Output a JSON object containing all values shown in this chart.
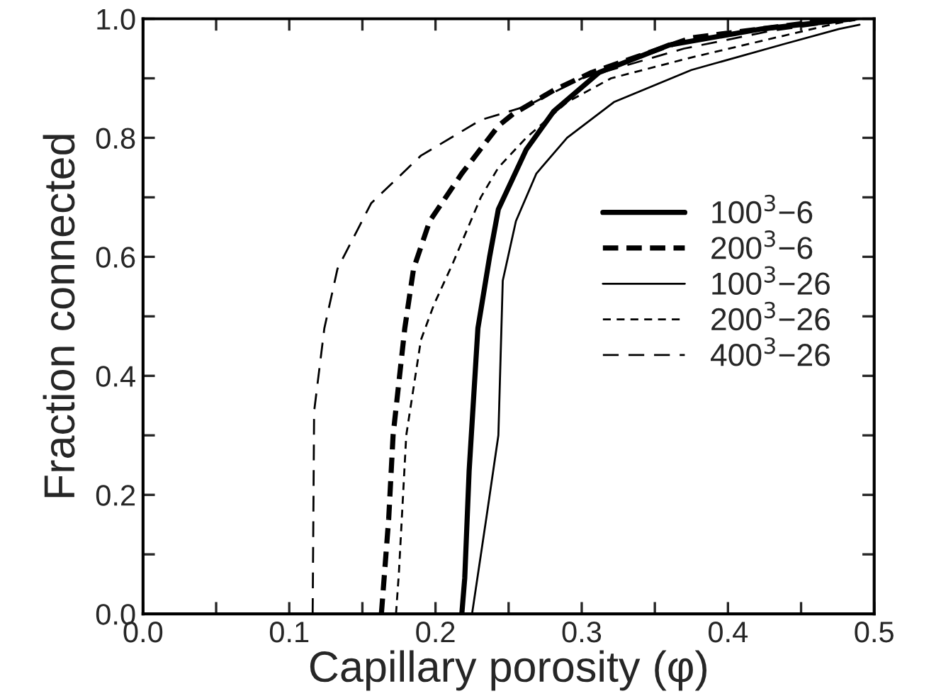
{
  "chart_data": {
    "type": "line",
    "xlabel": "Capillary porosity (φ)",
    "ylabel": "Fraction connected",
    "xlim": [
      0.0,
      0.5
    ],
    "ylim": [
      0.0,
      1.0
    ],
    "xticks": [
      {
        "value": 0,
        "label": "0.0"
      },
      {
        "value": 0.05,
        "label": null
      },
      0.1,
      {
        "value": 0.15,
        "label": null
      },
      0.2,
      {
        "value": 0.25,
        "label": null
      },
      0.3,
      {
        "value": 0.35,
        "label": null
      },
      0.4,
      {
        "value": 0.45,
        "label": null
      },
      0.5
    ],
    "yticks": [
      {
        "value": 0,
        "label": "0.0"
      },
      {
        "value": 0.1,
        "label": null
      },
      0.2,
      {
        "value": 0.3,
        "label": null
      },
      0.4,
      {
        "value": 0.5,
        "label": null
      },
      0.6,
      {
        "value": 0.7,
        "label": null
      },
      0.8,
      {
        "value": 0.9,
        "label": null
      },
      {
        "value": 1,
        "label": "1.0"
      }
    ],
    "grid": false,
    "legend": "right",
    "marker": "none",
    "series": [
      {
        "name": "100$^{3}$−6",
        "color": "#000000",
        "line_style": "solid",
        "x": [
          0.218,
          0.22,
          0.223,
          0.229,
          0.237,
          0.243,
          0.262,
          0.281,
          0.312,
          0.36,
          0.423,
          0.486
        ],
        "values": [
          0.0,
          0.06,
          0.24,
          0.48,
          0.6,
          0.68,
          0.78,
          0.845,
          0.91,
          0.956,
          0.983,
          1.0
        ]
      },
      {
        "name": "200$^{3}$−6",
        "color": "#000000",
        "line_style": "dashed",
        "x": [
          0.163,
          0.168,
          0.171,
          0.179,
          0.185,
          0.196,
          0.218,
          0.243,
          0.253,
          0.281,
          0.307,
          0.375,
          0.47
        ],
        "values": [
          0.0,
          0.16,
          0.3,
          0.48,
          0.58,
          0.66,
          0.74,
          0.82,
          0.84,
          0.88,
          0.91,
          0.968,
          0.998
        ]
      },
      {
        "name": "100$^{3}$−26",
        "color": "#000000",
        "line_style": "solid",
        "x": [
          0.225,
          0.235,
          0.243,
          0.246,
          0.255,
          0.269,
          0.29,
          0.322,
          0.375,
          0.439,
          0.476,
          0.49
        ],
        "values": [
          0.0,
          0.165,
          0.3,
          0.56,
          0.66,
          0.74,
          0.8,
          0.86,
          0.914,
          0.958,
          0.983,
          0.99
        ]
      },
      {
        "name": "200$^{3}$−26",
        "color": "#000000",
        "line_style": "dashed",
        "x": [
          0.173,
          0.175,
          0.18,
          0.19,
          0.199,
          0.212,
          0.231,
          0.243,
          0.262,
          0.29,
          0.32,
          0.375,
          0.47,
          0.49
        ],
        "values": [
          0.0,
          0.07,
          0.3,
          0.46,
          0.52,
          0.59,
          0.7,
          0.75,
          0.8,
          0.86,
          0.9,
          0.935,
          0.99,
          1.0
        ]
      },
      {
        "name": "400$^{3}$−26",
        "color": "#000000",
        "line_style": "dashed",
        "x": [
          0.116,
          0.117,
          0.124,
          0.133,
          0.156,
          0.19,
          0.231,
          0.262,
          0.3,
          0.37,
          0.43,
          0.49
        ],
        "values": [
          0.0,
          0.34,
          0.48,
          0.58,
          0.69,
          0.77,
          0.83,
          0.853,
          0.9,
          0.95,
          0.98,
          1.0
        ]
      }
    ]
  }
}
